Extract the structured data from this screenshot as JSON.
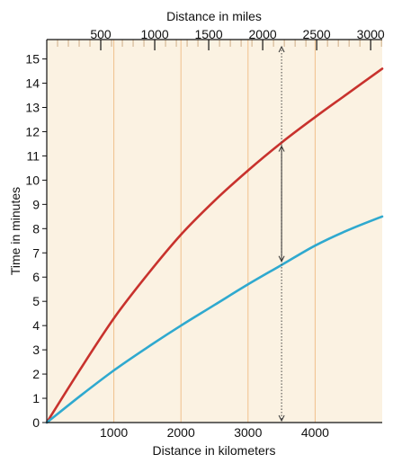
{
  "chart_data": {
    "type": "line",
    "title": "",
    "x_axis": {
      "label": "Distance in kilometers",
      "range": [
        0,
        5000
      ],
      "ticks": [
        1000,
        2000,
        3000,
        4000
      ],
      "tick_labels": [
        "1000",
        "2000",
        "3000",
        "4000"
      ]
    },
    "x2_axis": {
      "label": "Distance in miles",
      "position": "top",
      "range": [
        0,
        3107
      ],
      "ticks": [
        500,
        1000,
        1500,
        2000,
        2500,
        3000
      ],
      "tick_labels": [
        "500",
        "1000",
        "1500",
        "2000",
        "2500",
        "3000"
      ]
    },
    "y_axis": {
      "label": "Time in minutes",
      "range": [
        0,
        15.8
      ],
      "ticks": [
        0,
        1,
        2,
        3,
        4,
        5,
        6,
        7,
        8,
        9,
        10,
        11,
        12,
        13,
        14,
        15
      ],
      "tick_labels": [
        "0",
        "1",
        "2",
        "3",
        "4",
        "5",
        "6",
        "7",
        "8",
        "9",
        "10",
        "11",
        "12",
        "13",
        "14",
        "15"
      ]
    },
    "grid": "vertical",
    "series": [
      {
        "name": "",
        "color": "#c8322d",
        "points": [
          [
            0,
            0
          ],
          [
            500,
            2.2
          ],
          [
            1000,
            4.3
          ],
          [
            1500,
            6.1
          ],
          [
            2000,
            7.75
          ],
          [
            2500,
            9.15
          ],
          [
            3000,
            10.4
          ],
          [
            3500,
            11.55
          ],
          [
            4000,
            12.6
          ],
          [
            4500,
            13.6
          ],
          [
            5000,
            14.6
          ]
        ]
      },
      {
        "name": "",
        "color": "#2fa9cf",
        "points": [
          [
            0,
            0
          ],
          [
            500,
            1.1
          ],
          [
            1000,
            2.15
          ],
          [
            1500,
            3.1
          ],
          [
            2000,
            4.0
          ],
          [
            2500,
            4.85
          ],
          [
            3000,
            5.7
          ],
          [
            3500,
            6.5
          ],
          [
            4000,
            7.3
          ],
          [
            4500,
            7.95
          ],
          [
            5000,
            8.5
          ]
        ]
      }
    ],
    "annotation": {
      "type": "vertical-dotted-marker",
      "x": 3500
    },
    "colors": {
      "background": "#fbf2e2",
      "grid": "#f0c08c",
      "axis": "#111111"
    }
  }
}
